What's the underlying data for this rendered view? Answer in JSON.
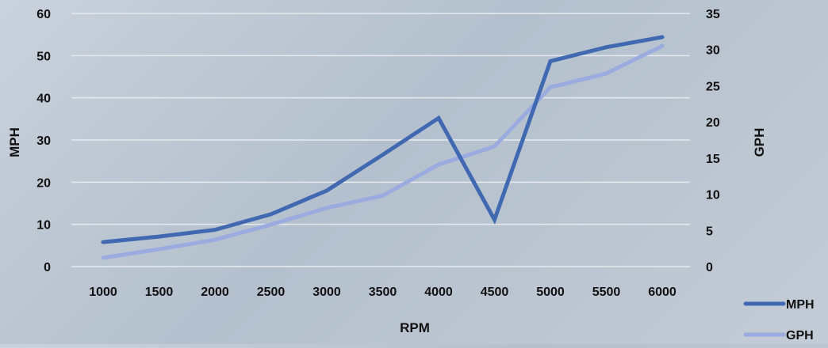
{
  "chart_data": {
    "type": "line",
    "xlabel": "RPM",
    "ylabel_left": "MPH",
    "ylabel_right": "GPH",
    "x": [
      1000,
      1500,
      2000,
      2500,
      3000,
      3500,
      4000,
      4500,
      5000,
      5500,
      6000
    ],
    "categories": [
      "1000",
      "1500",
      "2000",
      "2500",
      "3000",
      "3500",
      "4000",
      "4500",
      "5000",
      "5500",
      "6000"
    ],
    "ylim_left": [
      0,
      60
    ],
    "yticks_left": [
      0,
      10,
      20,
      30,
      40,
      50,
      60
    ],
    "ylim_right": [
      0,
      35
    ],
    "yticks_right": [
      0,
      5,
      10,
      15,
      20,
      25,
      30,
      35
    ],
    "grid": true,
    "legend_position": "bottom-right",
    "series": [
      {
        "name": "MPH",
        "axis": "left",
        "color": "#4169b1",
        "values": [
          5.8,
          7.1,
          8.7,
          12.4,
          18.0,
          26.5,
          35.2,
          11.1,
          48.7,
          52.0,
          54.4
        ]
      },
      {
        "name": "GPH",
        "axis": "right",
        "color": "#99abdf",
        "values": [
          1.2,
          2.4,
          3.7,
          5.8,
          8.1,
          9.8,
          14.1,
          16.6,
          24.8,
          26.7,
          30.5
        ]
      }
    ]
  }
}
